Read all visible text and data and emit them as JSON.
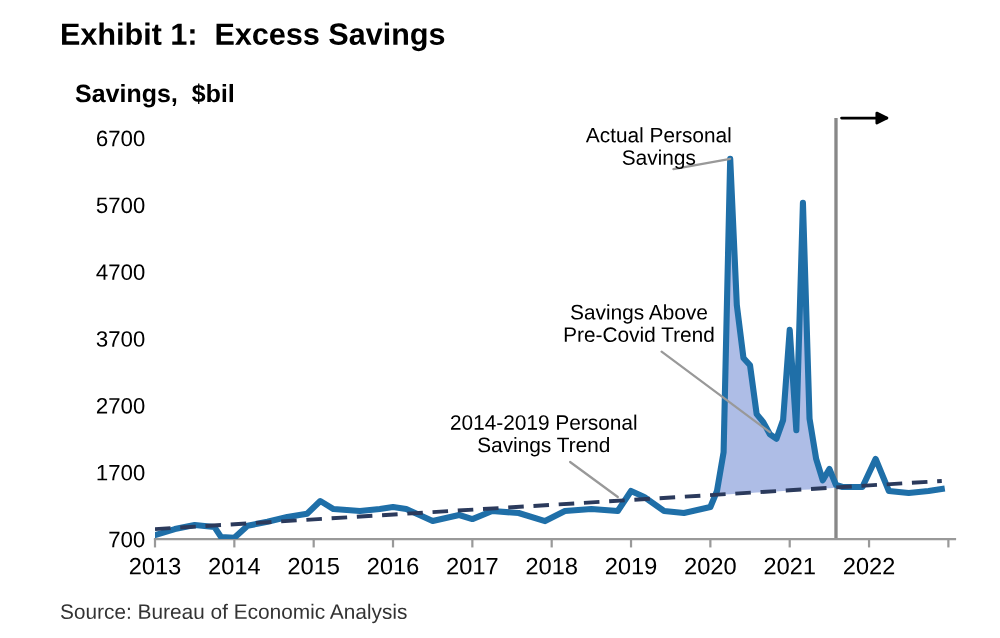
{
  "chart_data": {
    "type": "line",
    "title": "Exhibit 1:  Excess Savings",
    "ylabel": "Savings,  $bil",
    "xlim": [
      "2013-01",
      "2023-02"
    ],
    "ylim": [
      700,
      7000
    ],
    "yticks": [
      700,
      1700,
      2700,
      3700,
      4700,
      5700,
      6700
    ],
    "xticks": [
      {
        "value": "2013-01",
        "label": "2013"
      },
      {
        "value": "2014-01",
        "label": "2014"
      },
      {
        "value": "2015-01",
        "label": "2015"
      },
      {
        "value": "2016-01",
        "label": "2016"
      },
      {
        "value": "2017-01",
        "label": "2017"
      },
      {
        "value": "2018-01",
        "label": "2018"
      },
      {
        "value": "2019-01",
        "label": "2019"
      },
      {
        "value": "2020-01",
        "label": "2020"
      },
      {
        "value": "2021-01",
        "label": "2021"
      },
      {
        "value": "2022-01",
        "label": "2022"
      },
      {
        "value": "2023-01",
        "label": null
      }
    ],
    "grid": false,
    "legend": false,
    "series": [
      {
        "color": "#1f6fa8",
        "line_style": "solid",
        "x": [
          "2013-01",
          "2013-04",
          "2013-07",
          "2013-10",
          "2013-11",
          "2014-01",
          "2014-03",
          "2014-06",
          "2014-09",
          "2014-12",
          "2015-02",
          "2015-04",
          "2015-08",
          "2015-11",
          "2016-01",
          "2016-03",
          "2016-07",
          "2016-11",
          "2017-01",
          "2017-04",
          "2017-08",
          "2017-12",
          "2018-03",
          "2018-07",
          "2018-11",
          "2019-01",
          "2019-03",
          "2019-06",
          "2019-09",
          "2020-01",
          "2020-02",
          "2020-03",
          "2020-04",
          "2020-05",
          "2020-06",
          "2020-07",
          "2020-08",
          "2020-09",
          "2020-10",
          "2020-11",
          "2020-12",
          "2021-01",
          "2021-02",
          "2021-03",
          "2021-04",
          "2021-05",
          "2021-06",
          "2021-07",
          "2021-08",
          "2021-09",
          "2021-12",
          "2022-02",
          "2022-04",
          "2022-07",
          "2022-10",
          "2022-12"
        ],
        "values": [
          760,
          850,
          910,
          880,
          730,
          720,
          900,
          960,
          1030,
          1080,
          1270,
          1150,
          1120,
          1150,
          1180,
          1150,
          970,
          1060,
          1000,
          1120,
          1090,
          970,
          1120,
          1150,
          1120,
          1420,
          1330,
          1120,
          1090,
          1180,
          1420,
          2000,
          6390,
          4200,
          3410,
          3300,
          2570,
          2450,
          2270,
          2200,
          2480,
          3830,
          2330,
          5730,
          2500,
          1900,
          1580,
          1750,
          1510,
          1480,
          1480,
          1900,
          1420,
          1390,
          1420,
          1450
        ],
        "lower": [
          null,
          null,
          null,
          null,
          null,
          null,
          null,
          null,
          null,
          null,
          null,
          null,
          null,
          null,
          null,
          null,
          null,
          null,
          null,
          null,
          null,
          null,
          null,
          null,
          null,
          null,
          null,
          null,
          null,
          null,
          1366,
          1366,
          1372,
          1378,
          1384,
          1390,
          1396,
          1402,
          1408,
          1414,
          1420,
          1426,
          1432,
          1438,
          1444,
          1450,
          1456,
          1462,
          1468,
          null,
          null,
          null,
          null,
          null,
          null,
          null
        ],
        "upper": [
          null,
          null,
          null,
          null,
          null,
          null,
          null,
          null,
          null,
          null,
          null,
          null,
          null,
          null,
          null,
          null,
          null,
          null,
          null,
          null,
          null,
          null,
          null,
          null,
          null,
          null,
          null,
          null,
          null,
          null,
          1420,
          2000,
          6390,
          4200,
          3410,
          3300,
          2570,
          2450,
          2270,
          2200,
          2480,
          3830,
          2330,
          5730,
          2500,
          1900,
          1580,
          1750,
          1510,
          null,
          null,
          null,
          null,
          null,
          null,
          null
        ]
      },
      {
        "color": "#2b3a5c",
        "line_style": "dashed",
        "x": [
          "2013-01",
          "2022-12"
        ],
        "values": [
          850,
          1570
        ]
      }
    ],
    "ref_lines": [
      {
        "axis": "x",
        "value": "2021-08",
        "label": null,
        "color": "#888888",
        "line_style": "solid"
      }
    ],
    "annotations": [
      {
        "text": "Actual Personal\nSavings",
        "x": "2020-04",
        "y": 6390
      },
      {
        "text": "Savings Above\nPre-Covid Trend",
        "x": "2020-10",
        "y": 2300
      },
      {
        "text": "2014-2019 Personal\nSavings Trend",
        "x": "2018-11",
        "y": 1330
      },
      "Source: Bureau of Economic Analysis"
    ]
  }
}
